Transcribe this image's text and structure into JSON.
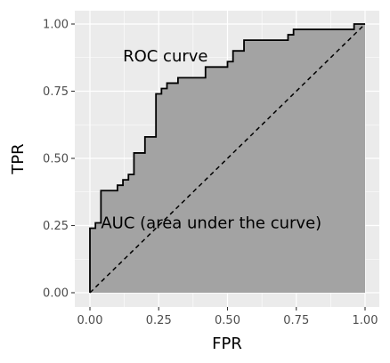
{
  "chart_data": {
    "type": "area",
    "xlabel": "FPR",
    "ylabel": "TPR",
    "xlim": [
      0,
      1
    ],
    "ylim": [
      0,
      1
    ],
    "x_ticks": [
      "0.00",
      "0.25",
      "0.50",
      "0.75",
      "1.00"
    ],
    "y_ticks": [
      "0.00",
      "0.25",
      "0.50",
      "0.75",
      "1.00"
    ],
    "grid": true,
    "panel_color": "#ebebeb",
    "area_fill_color": "#a3a3a3",
    "line_color": "#000000",
    "annotations": [
      {
        "text": "ROC curve",
        "x": 0.12,
        "y": 0.88
      },
      {
        "text": "AUC (area under the curve)",
        "x": 0.04,
        "y": 0.26
      }
    ],
    "reference_line": {
      "style": "dashed",
      "points": [
        [
          0,
          0
        ],
        [
          1,
          1
        ]
      ]
    },
    "roc_curve": [
      [
        0.0,
        0.0
      ],
      [
        0.0,
        0.24
      ],
      [
        0.02,
        0.24
      ],
      [
        0.02,
        0.26
      ],
      [
        0.04,
        0.26
      ],
      [
        0.04,
        0.38
      ],
      [
        0.1,
        0.38
      ],
      [
        0.1,
        0.4
      ],
      [
        0.12,
        0.4
      ],
      [
        0.12,
        0.42
      ],
      [
        0.14,
        0.42
      ],
      [
        0.14,
        0.44
      ],
      [
        0.16,
        0.44
      ],
      [
        0.16,
        0.52
      ],
      [
        0.2,
        0.52
      ],
      [
        0.2,
        0.58
      ],
      [
        0.24,
        0.58
      ],
      [
        0.24,
        0.74
      ],
      [
        0.26,
        0.74
      ],
      [
        0.26,
        0.76
      ],
      [
        0.28,
        0.76
      ],
      [
        0.28,
        0.78
      ],
      [
        0.32,
        0.78
      ],
      [
        0.32,
        0.8
      ],
      [
        0.42,
        0.8
      ],
      [
        0.42,
        0.84
      ],
      [
        0.5,
        0.84
      ],
      [
        0.5,
        0.86
      ],
      [
        0.52,
        0.86
      ],
      [
        0.52,
        0.9
      ],
      [
        0.56,
        0.9
      ],
      [
        0.56,
        0.94
      ],
      [
        0.72,
        0.94
      ],
      [
        0.72,
        0.96
      ],
      [
        0.74,
        0.96
      ],
      [
        0.74,
        0.98
      ],
      [
        0.96,
        0.98
      ],
      [
        0.96,
        1.0
      ],
      [
        1.0,
        1.0
      ]
    ]
  }
}
